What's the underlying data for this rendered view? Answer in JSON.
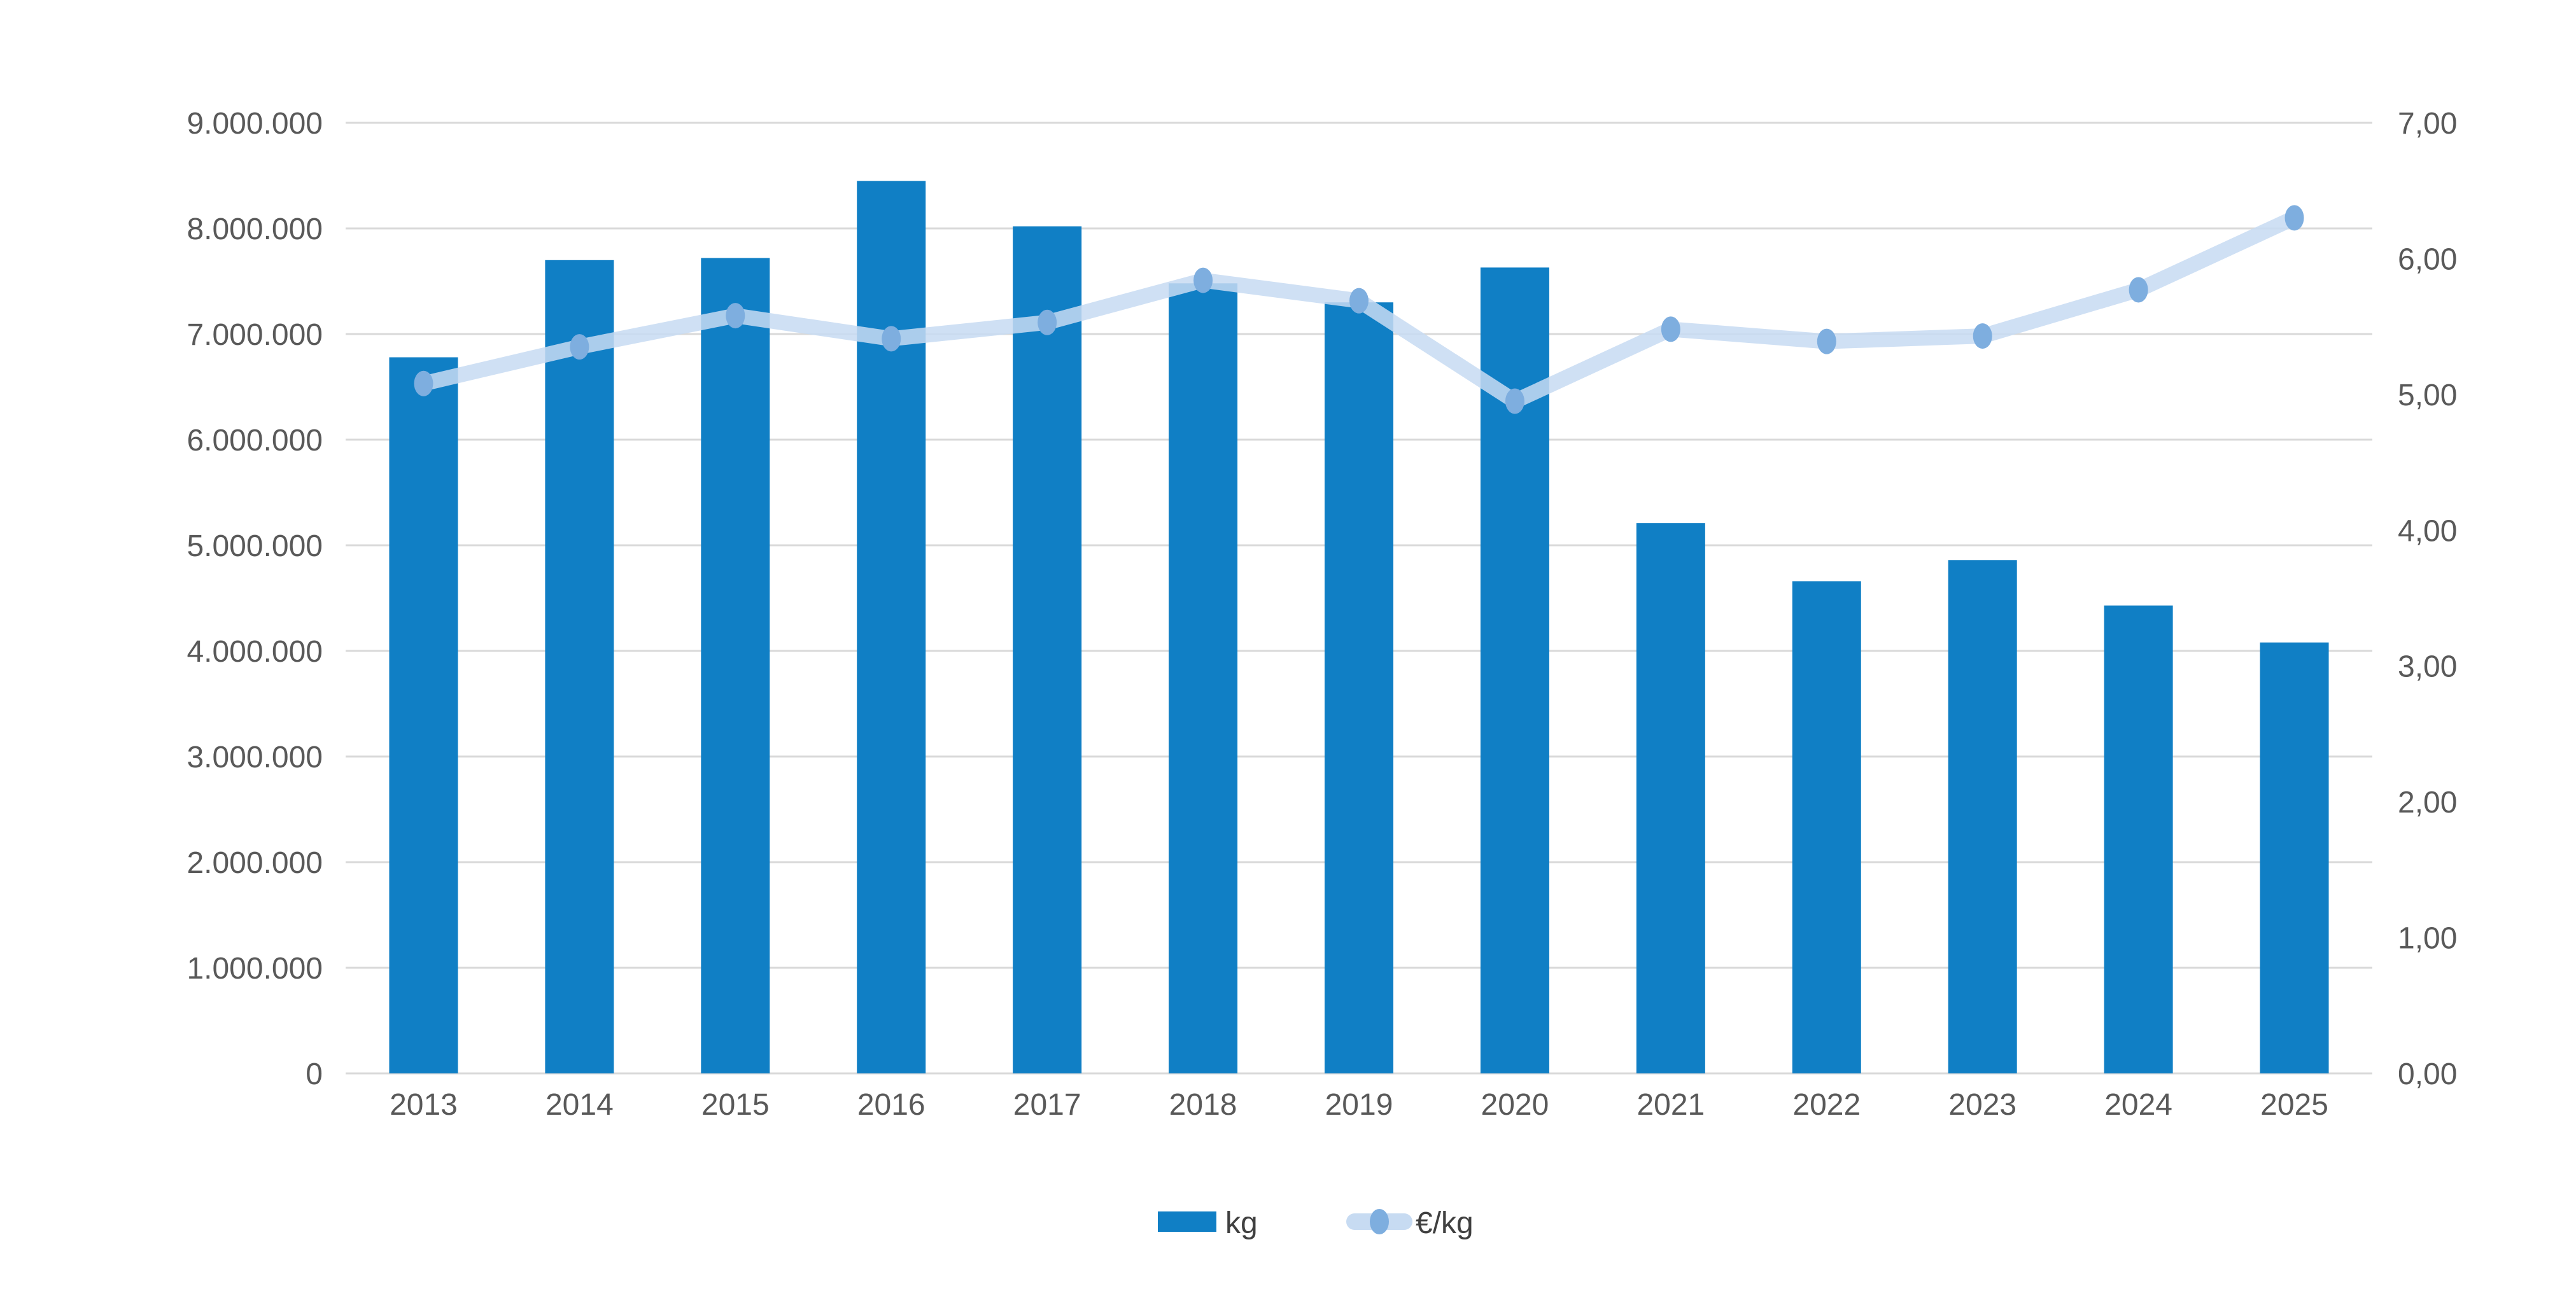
{
  "chart_data": {
    "type": "combo",
    "title": "",
    "categories": [
      "2013",
      "2014",
      "2015",
      "2016",
      "2017",
      "2018",
      "2019",
      "2020",
      "2021",
      "2022",
      "2023",
      "2024",
      "2025"
    ],
    "series": [
      {
        "name": "kg",
        "type": "bar",
        "axis": "left",
        "color": "#107FC5",
        "values": [
          6780000,
          7700000,
          7720000,
          8450000,
          8020000,
          7480000,
          7300000,
          7630000,
          5210000,
          4660000,
          4860000,
          4430000,
          4080000
        ]
      },
      {
        "name": "€/kg",
        "type": "line",
        "axis": "right",
        "color": "#C7DBF2",
        "marker_color": "#7EAEDF",
        "values": [
          5.08,
          5.35,
          5.58,
          5.41,
          5.53,
          5.84,
          5.69,
          4.95,
          5.48,
          5.39,
          5.43,
          5.77,
          6.3
        ]
      }
    ],
    "left_axis": {
      "min": 0,
      "max": 9000000,
      "tick_labels": [
        "0",
        "1.000.000",
        "2.000.000",
        "3.000.000",
        "4.000.000",
        "5.000.000",
        "6.000.000",
        "7.000.000",
        "8.000.000",
        "9.000.000"
      ]
    },
    "right_axis": {
      "min": 0,
      "max": 7,
      "tick_labels": [
        "0,00",
        "1,00",
        "2,00",
        "3,00",
        "4,00",
        "5,00",
        "6,00",
        "7,00"
      ]
    },
    "legend": {
      "items": [
        "kg",
        "€/kg"
      ],
      "position": "bottom"
    },
    "grid": true,
    "colors": {
      "grid_color": "#D9D9D9",
      "axis_line_color": "#D9D9D9",
      "axis_text_color": "#595959",
      "legend_text_color": "#404040",
      "background": "#FFFFFF"
    }
  }
}
